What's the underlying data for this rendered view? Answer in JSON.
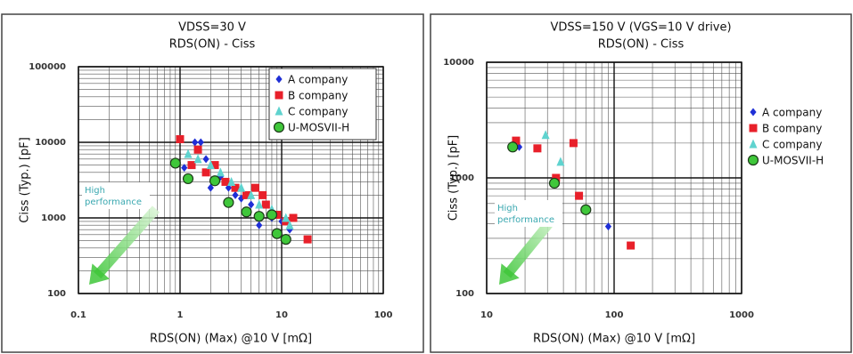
{
  "chart_data": [
    {
      "type": "scatter",
      "title": "VDSS=30 V",
      "subtitle": "RDS(ON) - Ciss",
      "x_label": "RDS(ON) (Max) @10 V [mΩ]",
      "y_label": "Ciss (Typ.) [pF]",
      "annotation": [
        "High",
        "performance"
      ],
      "xscale": "log",
      "yscale": "log",
      "xlim": [
        0.1,
        100
      ],
      "xticks": [
        0.1,
        1,
        10,
        100
      ],
      "ylim": [
        100,
        100000
      ],
      "yticks": [
        100,
        1000,
        10000,
        100000
      ],
      "grid": true,
      "legend": "upper right",
      "series": [
        {
          "name": "A company",
          "color": "#1f2fd6",
          "marker": "diamond",
          "x": [
            1.1,
            1.4,
            1.6,
            1.8,
            2.0,
            2.5,
            3,
            3.5,
            4,
            5,
            6,
            8,
            10,
            12
          ],
          "values": [
            4600,
            10000,
            10000,
            6000,
            2500,
            3500,
            2500,
            2000,
            1800,
            1500,
            800,
            1000,
            900,
            700
          ]
        },
        {
          "name": "B company",
          "color": "#e8202a",
          "marker": "square",
          "x": [
            1,
            1.3,
            1.5,
            1.8,
            2.2,
            2.8,
            3.5,
            4.5,
            5.5,
            6.5,
            7,
            9,
            11,
            13,
            18
          ],
          "values": [
            11000,
            5000,
            8000,
            4000,
            5000,
            3000,
            2500,
            2000,
            2500,
            2000,
            1500,
            1100,
            900,
            1000,
            520
          ]
        },
        {
          "name": "C company",
          "color": "#5fd3cf",
          "marker": "triangle",
          "x": [
            1.2,
            1.5,
            2,
            2.5,
            3.2,
            4,
            5,
            6,
            8,
            11,
            12
          ],
          "values": [
            7000,
            6000,
            5000,
            4000,
            3000,
            2500,
            2000,
            1500,
            1300,
            1000,
            800
          ]
        },
        {
          "name": "U-MOSVII-H",
          "color": "#3fc73a",
          "marker": "circle",
          "x": [
            0.9,
            1.2,
            2.2,
            3.0,
            4.5,
            6,
            8,
            9,
            11
          ],
          "values": [
            5300,
            3300,
            3100,
            1600,
            1200,
            1050,
            1100,
            620,
            520
          ]
        }
      ]
    },
    {
      "type": "scatter",
      "title": "VDSS=150 V (VGS=10 V drive)",
      "subtitle": "RDS(ON) - Ciss",
      "x_label": "RDS(ON) (Max) @10 V [mΩ]",
      "y_label": "Ciss (Typ.) [pF]",
      "annotation": [
        "High",
        "performance"
      ],
      "xscale": "log",
      "yscale": "log",
      "xlim": [
        10,
        1000
      ],
      "xticks": [
        10,
        100,
        1000
      ],
      "ylim": [
        100,
        10000
      ],
      "yticks": [
        100,
        1000,
        10000
      ],
      "grid": true,
      "legend": "right",
      "series": [
        {
          "name": "A company",
          "color": "#1f2fd6",
          "marker": "diamond",
          "x": [
            18,
            35,
            90
          ],
          "values": [
            1850,
            900,
            380
          ]
        },
        {
          "name": "B company",
          "color": "#e8202a",
          "marker": "square",
          "x": [
            17,
            25,
            35,
            48,
            53,
            135
          ],
          "values": [
            2100,
            1800,
            1000,
            2000,
            700,
            260
          ]
        },
        {
          "name": "C company",
          "color": "#5fd3cf",
          "marker": "triangle",
          "x": [
            29,
            38
          ],
          "values": [
            2350,
            1380
          ]
        },
        {
          "name": "U-MOSVII-H",
          "color": "#3fc73a",
          "marker": "circle",
          "x": [
            16,
            34,
            60
          ],
          "values": [
            1850,
            900,
            530
          ]
        }
      ]
    }
  ]
}
